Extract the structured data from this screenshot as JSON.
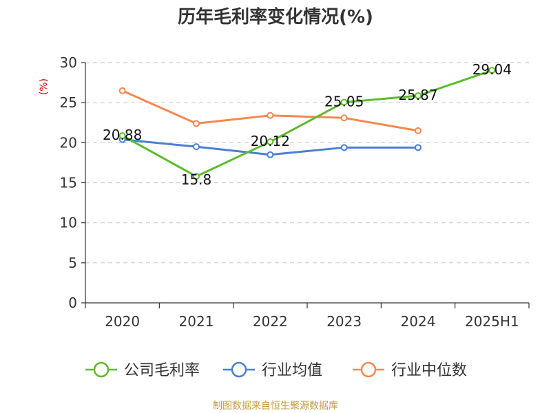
{
  "chart_data": {
    "type": "line",
    "title": "历年毛利率变化情况(%)",
    "ylabel": "(%)",
    "categories": [
      "2020",
      "2021",
      "2022",
      "2023",
      "2024",
      "2025H1"
    ],
    "ylim": [
      0,
      30
    ],
    "yticks": [
      "0",
      "5",
      "10",
      "15",
      "20",
      "25",
      "30"
    ],
    "grid": true,
    "legend_position": "bottom",
    "series": [
      {
        "name": "公司毛利率",
        "color": "#5dbb2a",
        "values": [
          20.88,
          15.8,
          20.12,
          25.05,
          25.87,
          29.04
        ],
        "labels": [
          "20.88",
          "15.8",
          "20.12",
          "25.05",
          "25.87",
          "29.04"
        ]
      },
      {
        "name": "行业均值",
        "color": "#4a7fd4",
        "values": [
          20.4,
          19.5,
          18.5,
          19.4,
          19.4,
          null
        ]
      },
      {
        "name": "行业中位数",
        "color": "#f5884f",
        "values": [
          26.5,
          22.4,
          23.4,
          23.1,
          21.5,
          null
        ]
      }
    ],
    "source": "制图数据来自恒生聚源数据库"
  }
}
